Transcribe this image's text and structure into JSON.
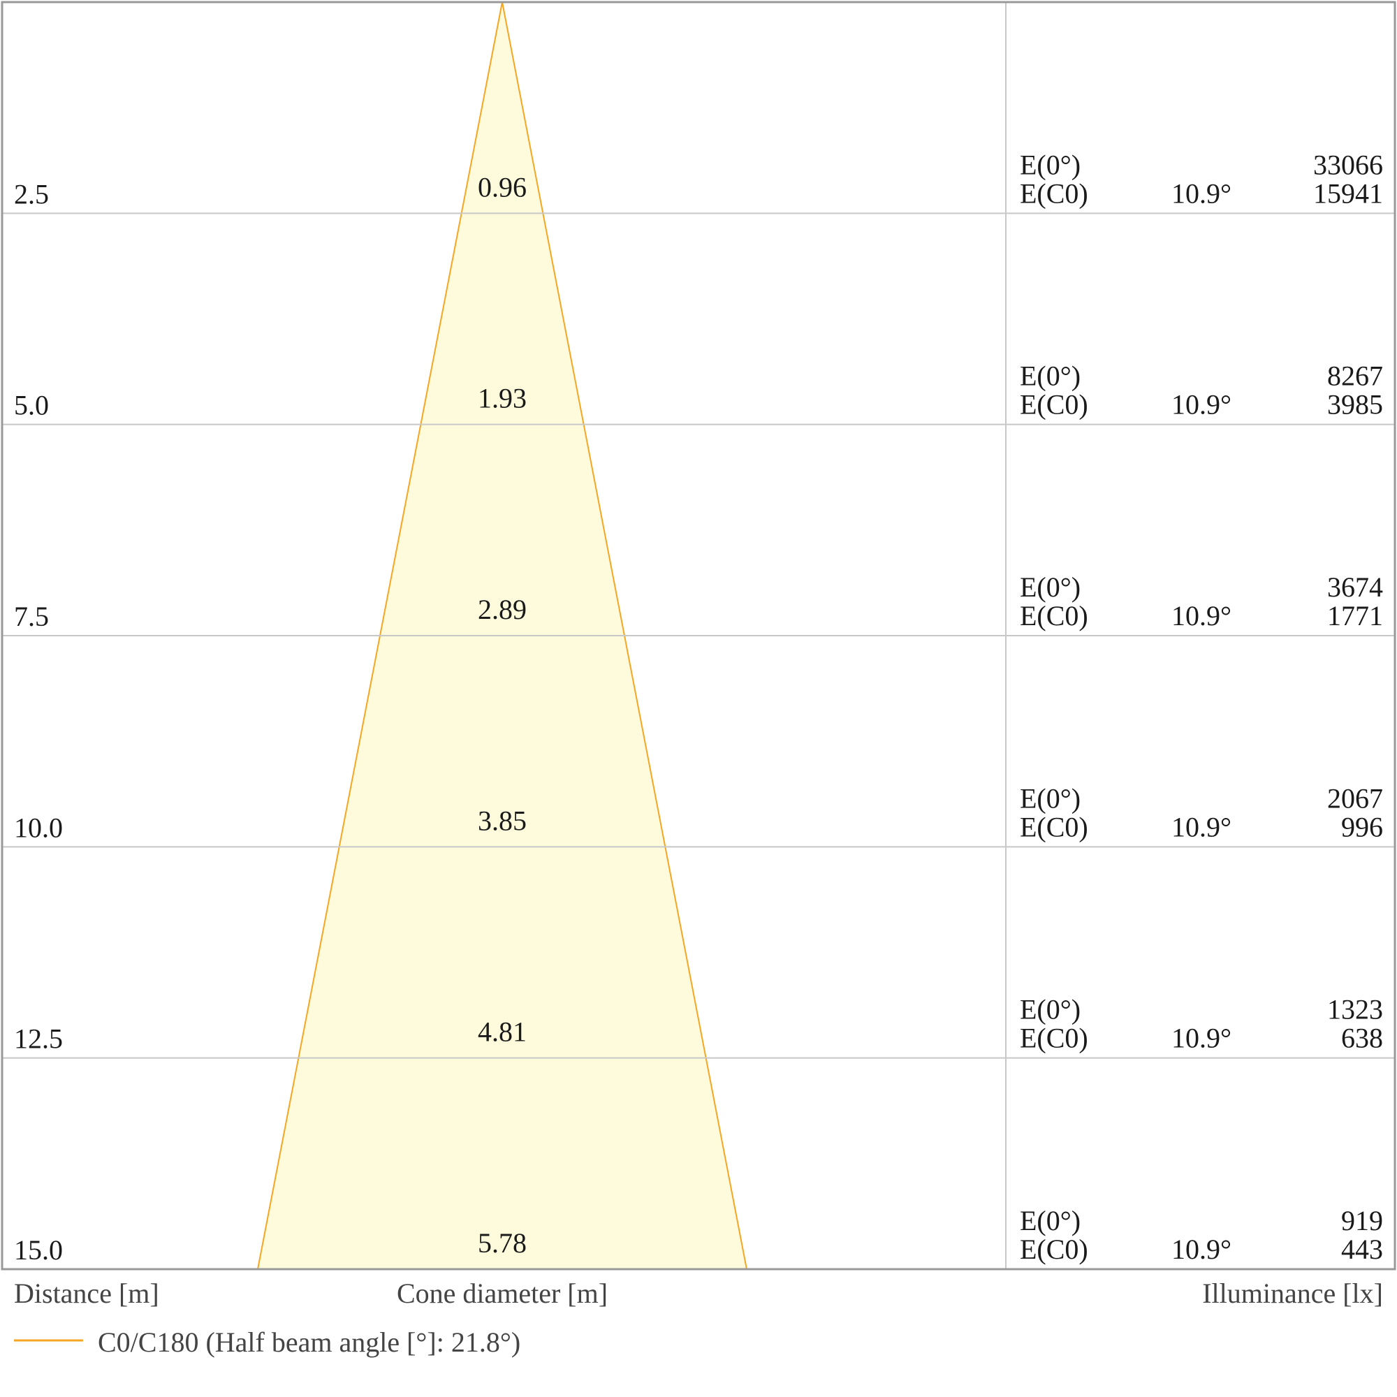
{
  "chart_data": {
    "type": "cone-diagram",
    "distance_label": "Distance [m]",
    "cone_label": "Cone diameter [m]",
    "illuminance_label": "Illuminance [lx]",
    "legend": "C0/C180 (Half beam angle [°]: 21.8°)",
    "colors": {
      "cone_stroke": "#f5a623",
      "cone_fill": "#fdfbdc",
      "grid": "#c8c8c8",
      "frame": "#999999"
    },
    "e0_label": "E(0°)",
    "ec0_label": "E(C0)",
    "rows": [
      {
        "distance": "2.5",
        "diameter": "0.96",
        "angle": "10.9°",
        "e0": "33066",
        "ec0": "15941"
      },
      {
        "distance": "5.0",
        "diameter": "1.93",
        "angle": "10.9°",
        "e0": "8267",
        "ec0": "3985"
      },
      {
        "distance": "7.5",
        "diameter": "2.89",
        "angle": "10.9°",
        "e0": "3674",
        "ec0": "1771"
      },
      {
        "distance": "10.0",
        "diameter": "3.85",
        "angle": "10.9°",
        "e0": "2067",
        "ec0": "996"
      },
      {
        "distance": "12.5",
        "diameter": "4.81",
        "angle": "10.9°",
        "e0": "1323",
        "ec0": "638"
      },
      {
        "distance": "15.0",
        "diameter": "5.78",
        "angle": "10.9°",
        "e0": "919",
        "ec0": "443"
      }
    ]
  }
}
